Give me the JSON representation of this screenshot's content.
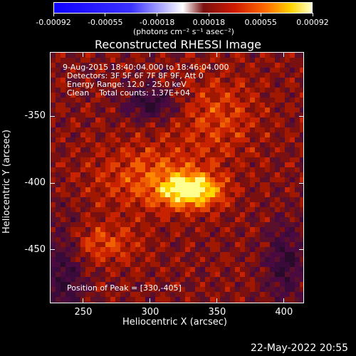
{
  "colorbar": {
    "ticks": [
      "-0.00092",
      "-0.00055",
      "-0.00018",
      "0.00018",
      "0.00055",
      "0.00092"
    ],
    "units_label": "(photons cm⁻² s⁻¹ asec⁻²)"
  },
  "title": "Reconstructed RHESSI Image",
  "info": {
    "time_range": "9-Aug-2015 18:40:04.000 to 18:46:04.000",
    "detectors": "Detectors: 3F 5F 6F 7F 8F 9F, Att 0",
    "energy": "Energy Range: 12.0 - 25.0 keV",
    "clean": "Clean    Total counts: 1.37E+04",
    "peak": "Position of Peak = [330,-405]"
  },
  "axes": {
    "xlabel": "Heliocentric X (arcsec)",
    "ylabel": "Heliocentric Y (arcsec)",
    "xticks": [
      "250",
      "300",
      "350",
      "400"
    ],
    "yticks": [
      "-350",
      "-400",
      "-450"
    ],
    "xrange": [
      225,
      415
    ],
    "yrange": [
      -490,
      -302
    ]
  },
  "footer": {
    "date": "22-May-2022 20:55"
  },
  "colors": {
    "background": "#000000",
    "peak": "#ffffcc",
    "low": "#3a0a3a"
  }
}
